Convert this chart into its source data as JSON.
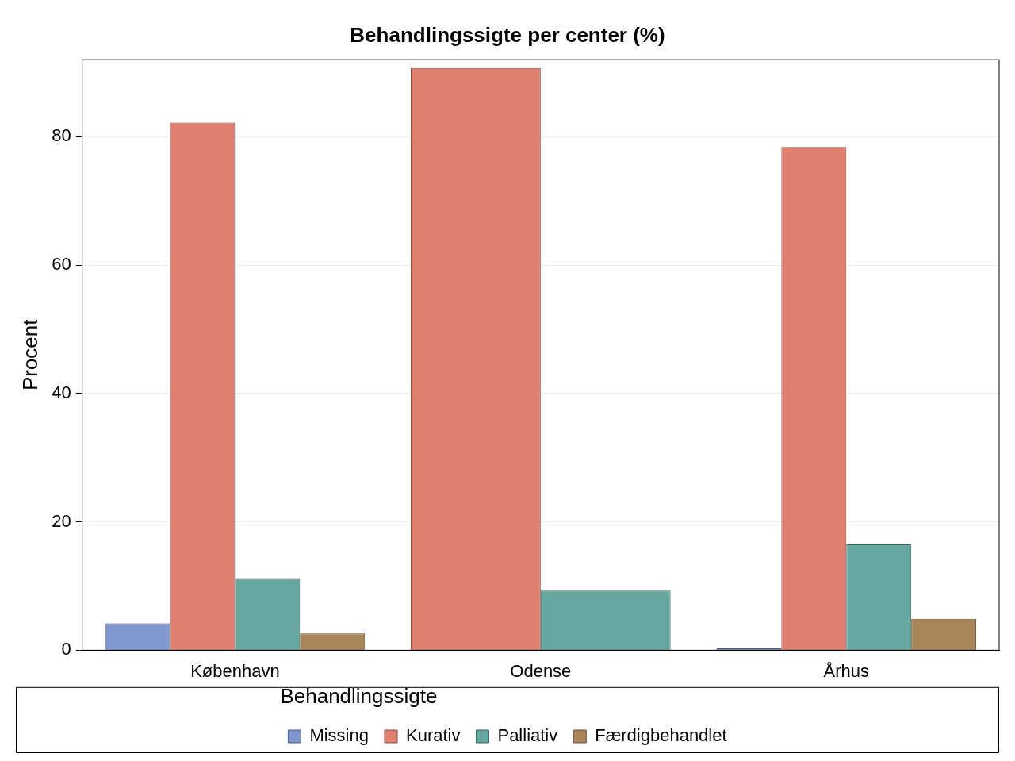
{
  "chart_data": {
    "type": "bar",
    "title": "Behandlingssigte per center (%)",
    "ylabel": "Procent",
    "legend_title": "Behandlingssigte",
    "categories": [
      "København",
      "Odense",
      "Århus"
    ],
    "series": [
      {
        "name": "Missing",
        "color": "#7f96cf",
        "values": [
          4.2,
          null,
          0.3
        ]
      },
      {
        "name": "Kurativ",
        "color": "#df7f6f",
        "values": [
          82.2,
          90.7,
          78.4
        ]
      },
      {
        "name": "Palliativ",
        "color": "#66a8a0",
        "values": [
          11.1,
          9.3,
          16.5
        ]
      },
      {
        "name": "Færdigbehandlet",
        "color": "#a8865a",
        "values": [
          2.6,
          null,
          4.9
        ]
      }
    ],
    "ylim": [
      0,
      92
    ],
    "yticks": [
      0,
      20,
      40,
      60,
      80
    ],
    "grid": "y",
    "legend": "bottom"
  }
}
